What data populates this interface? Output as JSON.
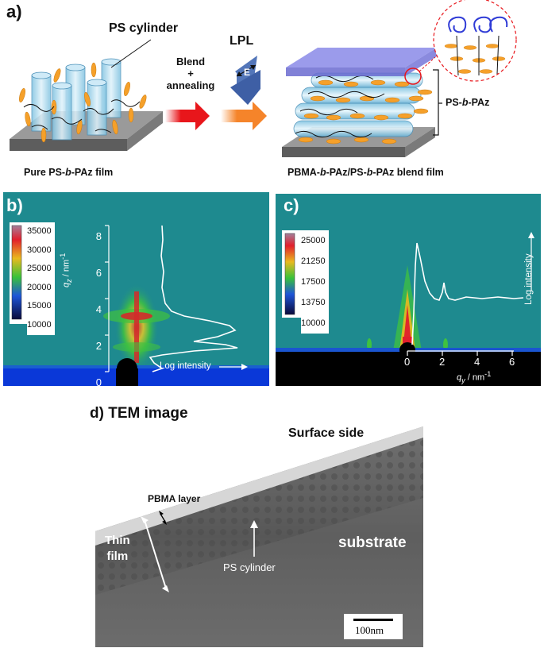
{
  "panel_a": {
    "letter": "a)",
    "ps_cylinder_label": "PS cylinder",
    "arrow_label_line1": "Blend",
    "arrow_label_line2": "+",
    "arrow_label_line3": "annealing",
    "lpl_label": "LPL",
    "e_label": "E",
    "ps_b_paz_prefix": "PS-",
    "ps_b_paz_italic": "b",
    "ps_b_paz_suffix": "-PAz",
    "left_caption_prefix": "Pure PS-",
    "left_caption_italic": "b",
    "left_caption_suffix": "-PAz film",
    "right_caption_part1": "PBMA-",
    "right_caption_italic1": "b",
    "right_caption_part2": "-PAz/PS-",
    "right_caption_italic2": "b",
    "right_caption_part3": "-PAz blend film"
  },
  "panel_b": {
    "letter": "b)",
    "colorbar_ticks": [
      "35000",
      "30000",
      "25000",
      "20000",
      "15000",
      "10000"
    ],
    "y_ticks": [
      "8",
      "6",
      "4",
      "2",
      "0"
    ],
    "y_axis_label": "q",
    "y_axis_sub": "z",
    "y_axis_unit": " / nm",
    "y_axis_sup": "-1",
    "intensity_label": "Log intensity"
  },
  "panel_c": {
    "letter": "c)",
    "colorbar_ticks": [
      "25000",
      "21250",
      "17500",
      "13750",
      "10000"
    ],
    "x_ticks": [
      "0",
      "2",
      "4",
      "6"
    ],
    "x_axis_label": "q",
    "x_axis_sub": "y",
    "x_axis_unit": " / nm",
    "x_axis_sup": "-1",
    "intensity_label": "Log intensity"
  },
  "panel_d": {
    "title": "d) TEM image",
    "surface_label": "Surface side",
    "pbma_label": "PBMA layer",
    "thin_film_line1": "Thin",
    "thin_film_line2": "film",
    "ps_cylinder_label": "PS cylinder",
    "substrate_label": "substrate",
    "scalebar_label": "100nm"
  },
  "colors": {
    "detector_bg": "#1e8a8f",
    "arrow_red": "#e8161b",
    "arrow_orange": "#f5842a",
    "lpl_blue": "#4a6fb5",
    "cylinder_blue": "#a8d8ec",
    "mesogen_orange": "#f5a02a",
    "film_purple": "#7f7fe0",
    "tem_gray": "#6a6a6a"
  }
}
